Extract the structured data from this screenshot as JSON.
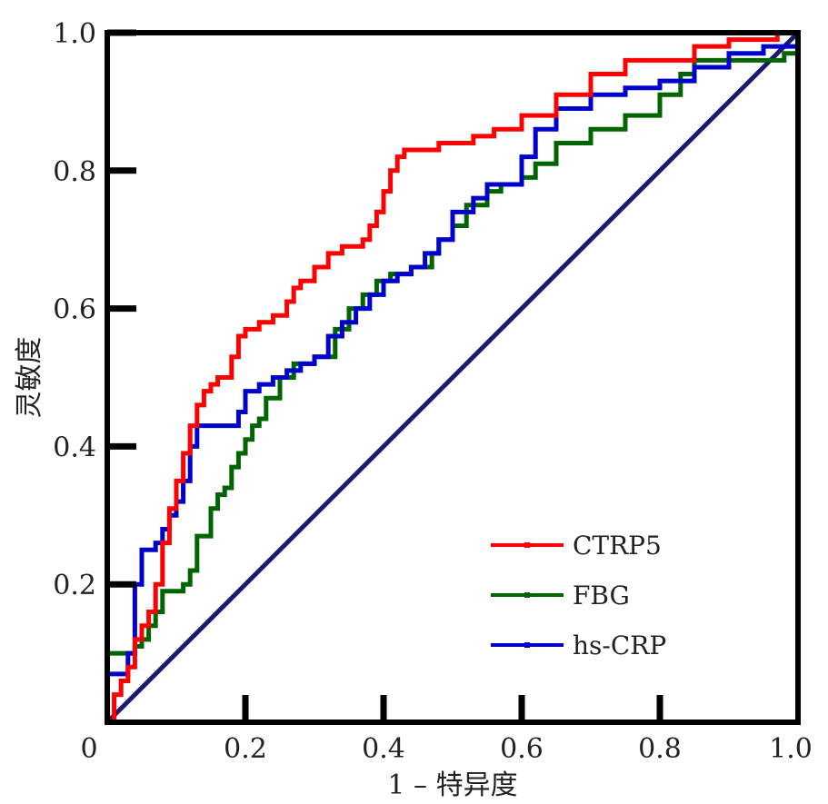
{
  "chart_data": {
    "type": "line",
    "title": "",
    "xlabel": "1 – 特异度",
    "ylabel": "灵敏度",
    "xlim": [
      0,
      1.0
    ],
    "ylim": [
      0,
      1.0
    ],
    "x_ticks": [
      0,
      0.2,
      0.4,
      0.6,
      0.8,
      1.0
    ],
    "x_tick_labels": [
      "0",
      "0.2",
      "0.4",
      "0.6",
      "0.8",
      "1.0"
    ],
    "y_ticks": [
      0.2,
      0.4,
      0.6,
      0.8,
      1.0
    ],
    "y_tick_labels": [
      "0.2",
      "0.4",
      "0.6",
      "0.8",
      "1.0"
    ],
    "grid": false,
    "legend_position": "bottom-right",
    "reference_line": {
      "x": [
        0,
        1
      ],
      "y": [
        0,
        1
      ],
      "color": "#1a1a6e"
    },
    "series": [
      {
        "name": "CTRP5",
        "color": "#ff0000",
        "x": [
          0,
          0.01,
          0.01,
          0.02,
          0.03,
          0.04,
          0.05,
          0.06,
          0.07,
          0.08,
          0.09,
          0.1,
          0.11,
          0.12,
          0.13,
          0.14,
          0.15,
          0.16,
          0.18,
          0.19,
          0.2,
          0.22,
          0.24,
          0.26,
          0.27,
          0.28,
          0.3,
          0.32,
          0.34,
          0.36,
          0.37,
          0.38,
          0.39,
          0.4,
          0.41,
          0.42,
          0.43,
          0.45,
          0.48,
          0.5,
          0.53,
          0.56,
          0.6,
          0.65,
          0.7,
          0.75,
          0.8,
          0.85,
          0.9,
          0.95,
          0.97,
          1.0
        ],
        "y": [
          0,
          0.02,
          0.04,
          0.06,
          0.08,
          0.12,
          0.14,
          0.16,
          0.2,
          0.26,
          0.31,
          0.35,
          0.39,
          0.43,
          0.46,
          0.48,
          0.49,
          0.5,
          0.53,
          0.56,
          0.57,
          0.58,
          0.59,
          0.61,
          0.63,
          0.64,
          0.66,
          0.68,
          0.69,
          0.69,
          0.7,
          0.72,
          0.74,
          0.77,
          0.8,
          0.82,
          0.83,
          0.83,
          0.84,
          0.84,
          0.85,
          0.86,
          0.88,
          0.91,
          0.94,
          0.96,
          0.96,
          0.98,
          0.99,
          0.99,
          1.0,
          1.0
        ]
      },
      {
        "name": "FBG",
        "color": "#006400",
        "x": [
          0,
          0.0,
          0.03,
          0.04,
          0.05,
          0.06,
          0.07,
          0.08,
          0.1,
          0.11,
          0.12,
          0.13,
          0.14,
          0.15,
          0.16,
          0.17,
          0.18,
          0.19,
          0.2,
          0.21,
          0.22,
          0.23,
          0.25,
          0.27,
          0.3,
          0.33,
          0.35,
          0.37,
          0.39,
          0.41,
          0.44,
          0.47,
          0.48,
          0.5,
          0.52,
          0.55,
          0.57,
          0.6,
          0.62,
          0.65,
          0.7,
          0.75,
          0.8,
          0.83,
          0.85,
          0.9,
          0.95,
          0.98,
          1.0
        ],
        "y": [
          0,
          0.1,
          0.1,
          0.11,
          0.12,
          0.14,
          0.16,
          0.19,
          0.19,
          0.2,
          0.22,
          0.27,
          0.27,
          0.31,
          0.33,
          0.34,
          0.37,
          0.39,
          0.41,
          0.43,
          0.44,
          0.47,
          0.5,
          0.52,
          0.53,
          0.57,
          0.6,
          0.62,
          0.64,
          0.65,
          0.66,
          0.68,
          0.7,
          0.72,
          0.75,
          0.77,
          0.78,
          0.79,
          0.81,
          0.84,
          0.86,
          0.88,
          0.91,
          0.94,
          0.96,
          0.96,
          0.96,
          0.97,
          1.0
        ]
      },
      {
        "name": "hs-CRP",
        "color": "#0000cd",
        "x": [
          0,
          0.0,
          0.02,
          0.03,
          0.04,
          0.05,
          0.07,
          0.08,
          0.09,
          0.1,
          0.11,
          0.12,
          0.13,
          0.14,
          0.15,
          0.18,
          0.19,
          0.2,
          0.22,
          0.24,
          0.26,
          0.28,
          0.3,
          0.32,
          0.34,
          0.36,
          0.38,
          0.4,
          0.42,
          0.44,
          0.46,
          0.48,
          0.5,
          0.53,
          0.55,
          0.58,
          0.6,
          0.62,
          0.65,
          0.7,
          0.75,
          0.8,
          0.85,
          0.9,
          0.95,
          1.0
        ],
        "y": [
          0,
          0.07,
          0.07,
          0.1,
          0.2,
          0.25,
          0.26,
          0.28,
          0.3,
          0.32,
          0.35,
          0.4,
          0.43,
          0.43,
          0.43,
          0.43,
          0.45,
          0.48,
          0.49,
          0.5,
          0.51,
          0.52,
          0.53,
          0.56,
          0.58,
          0.6,
          0.62,
          0.64,
          0.65,
          0.66,
          0.68,
          0.7,
          0.74,
          0.76,
          0.78,
          0.78,
          0.82,
          0.86,
          0.89,
          0.91,
          0.92,
          0.93,
          0.95,
          0.97,
          0.98,
          1.0
        ]
      }
    ]
  }
}
